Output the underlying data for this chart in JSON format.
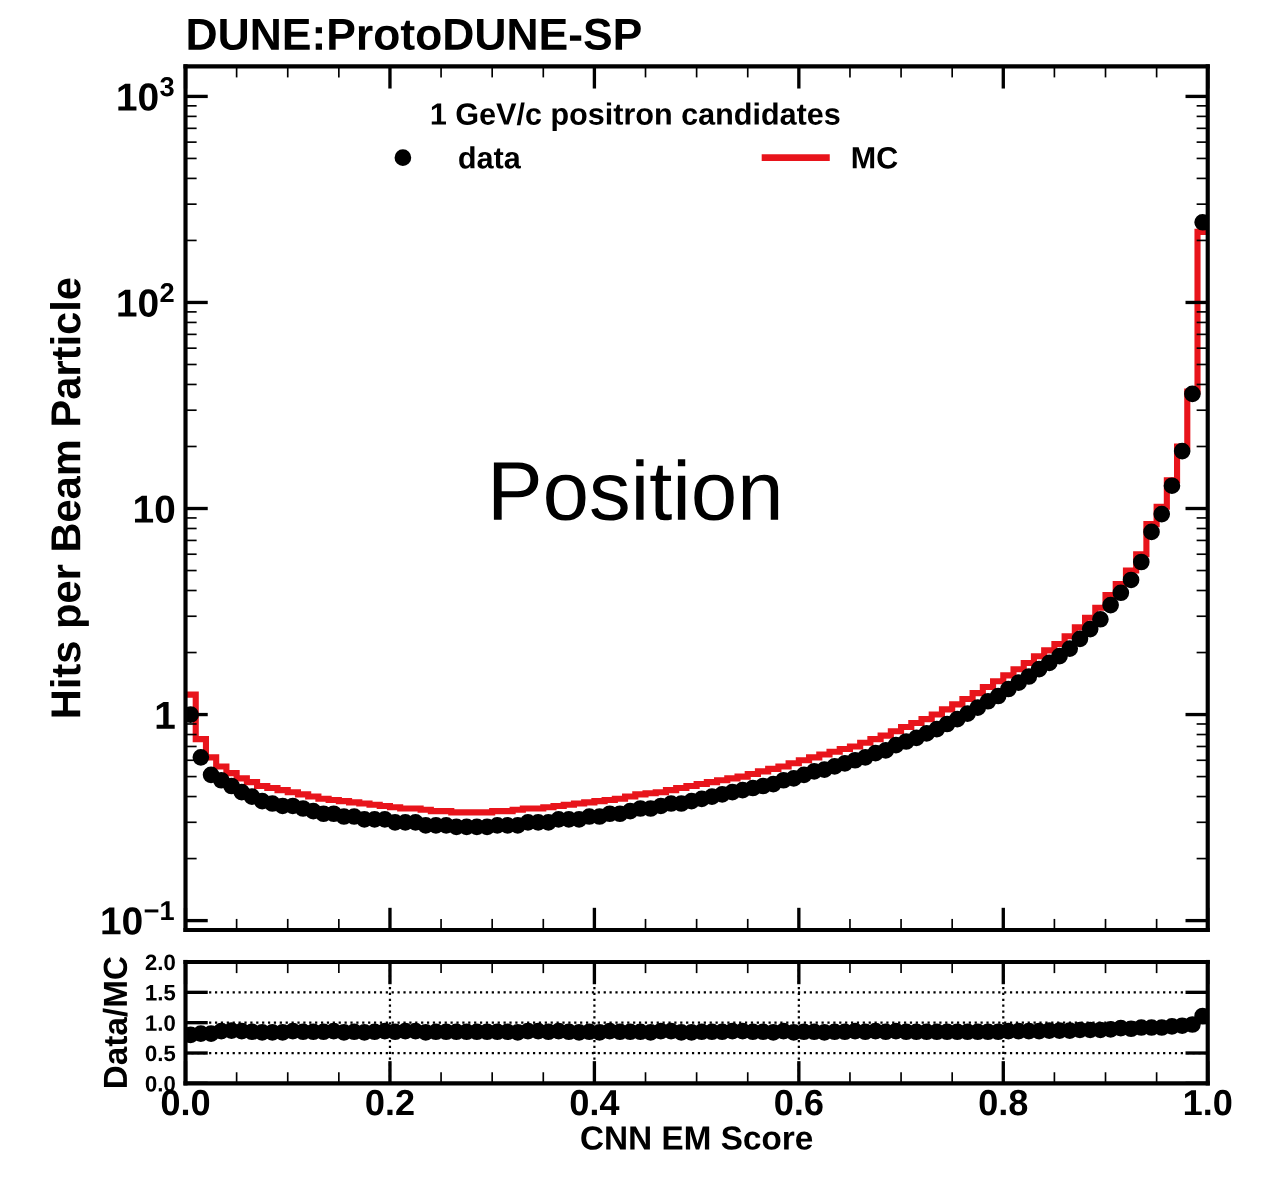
{
  "chart_data": [
    {
      "type": "histogram",
      "title": "DUNE:ProtoDUNE-SP",
      "ylabel": "Hits per Beam Particle",
      "legend_title": "1 GeV/c positron candidates",
      "legend": "top",
      "annotations": [
        "Position"
      ],
      "bins": [
        0,
        0.01,
        0.02,
        0.03,
        0.04,
        0.05,
        0.06,
        0.07,
        0.08,
        0.09,
        0.1,
        0.11,
        0.12,
        0.13,
        0.14,
        0.15,
        0.16,
        0.17,
        0.18,
        0.19,
        0.2,
        0.21,
        0.22,
        0.23,
        0.24,
        0.25,
        0.26,
        0.27,
        0.28,
        0.29,
        0.3,
        0.31,
        0.32,
        0.33,
        0.34,
        0.35,
        0.36,
        0.37,
        0.38,
        0.39,
        0.4,
        0.41,
        0.42,
        0.43,
        0.44,
        0.45,
        0.46,
        0.47,
        0.48,
        0.49,
        0.5,
        0.51,
        0.52,
        0.53,
        0.54,
        0.55,
        0.56,
        0.57,
        0.58,
        0.59,
        0.6,
        0.61,
        0.62,
        0.63,
        0.64,
        0.65,
        0.66,
        0.67,
        0.68,
        0.69,
        0.7,
        0.71,
        0.72,
        0.73,
        0.74,
        0.75,
        0.76,
        0.77,
        0.78,
        0.79,
        0.8,
        0.81,
        0.82,
        0.83,
        0.84,
        0.85,
        0.86,
        0.87,
        0.88,
        0.89,
        0.9,
        0.91,
        0.92,
        0.93,
        0.94,
        0.95,
        0.96,
        0.97,
        0.98,
        0.99,
        1.0
      ],
      "series": [
        {
          "name": "data",
          "type": "scatter",
          "color": "#000000",
          "marker": "circle",
          "x": [
            0.005,
            0.015,
            0.025,
            0.035,
            0.045,
            0.055,
            0.065,
            0.075,
            0.085,
            0.095,
            0.105,
            0.115,
            0.125,
            0.135,
            0.145,
            0.155,
            0.165,
            0.175,
            0.185,
            0.195,
            0.205,
            0.215,
            0.225,
            0.235,
            0.245,
            0.255,
            0.265,
            0.275,
            0.285,
            0.295,
            0.305,
            0.315,
            0.325,
            0.335,
            0.345,
            0.355,
            0.365,
            0.375,
            0.385,
            0.395,
            0.405,
            0.415,
            0.425,
            0.435,
            0.445,
            0.455,
            0.465,
            0.475,
            0.485,
            0.495,
            0.505,
            0.515,
            0.525,
            0.535,
            0.545,
            0.555,
            0.565,
            0.575,
            0.585,
            0.595,
            0.605,
            0.615,
            0.625,
            0.635,
            0.645,
            0.655,
            0.665,
            0.675,
            0.685,
            0.695,
            0.705,
            0.715,
            0.725,
            0.735,
            0.745,
            0.755,
            0.765,
            0.775,
            0.785,
            0.795,
            0.805,
            0.815,
            0.825,
            0.835,
            0.845,
            0.855,
            0.865,
            0.875,
            0.885,
            0.895,
            0.905,
            0.915,
            0.925,
            0.935,
            0.945,
            0.955,
            0.965,
            0.975,
            0.985,
            0.995
          ],
          "values": [
            1.0,
            0.62,
            0.51,
            0.48,
            0.45,
            0.42,
            0.4,
            0.38,
            0.37,
            0.36,
            0.36,
            0.35,
            0.34,
            0.33,
            0.33,
            0.32,
            0.32,
            0.31,
            0.31,
            0.31,
            0.3,
            0.3,
            0.3,
            0.29,
            0.29,
            0.29,
            0.285,
            0.285,
            0.285,
            0.285,
            0.29,
            0.29,
            0.29,
            0.3,
            0.3,
            0.3,
            0.31,
            0.31,
            0.31,
            0.32,
            0.32,
            0.33,
            0.33,
            0.34,
            0.35,
            0.35,
            0.36,
            0.37,
            0.37,
            0.38,
            0.39,
            0.4,
            0.41,
            0.42,
            0.43,
            0.44,
            0.45,
            0.46,
            0.48,
            0.49,
            0.51,
            0.53,
            0.54,
            0.56,
            0.58,
            0.6,
            0.62,
            0.65,
            0.67,
            0.71,
            0.74,
            0.77,
            0.81,
            0.85,
            0.9,
            0.95,
            1.01,
            1.08,
            1.16,
            1.23,
            1.33,
            1.43,
            1.53,
            1.66,
            1.78,
            1.92,
            2.09,
            2.33,
            2.6,
            2.9,
            3.4,
            3.9,
            4.5,
            5.5,
            7.7,
            9.4,
            12.9,
            19,
            36,
            245
          ]
        },
        {
          "name": "MC",
          "type": "histogram",
          "color": "#e8141b",
          "values": [
            1.25,
            0.76,
            0.62,
            0.56,
            0.52,
            0.49,
            0.47,
            0.45,
            0.44,
            0.43,
            0.42,
            0.41,
            0.4,
            0.39,
            0.385,
            0.38,
            0.375,
            0.37,
            0.365,
            0.36,
            0.355,
            0.35,
            0.35,
            0.345,
            0.34,
            0.34,
            0.335,
            0.335,
            0.335,
            0.335,
            0.34,
            0.34,
            0.345,
            0.35,
            0.35,
            0.355,
            0.36,
            0.365,
            0.37,
            0.375,
            0.38,
            0.385,
            0.39,
            0.4,
            0.41,
            0.415,
            0.42,
            0.43,
            0.44,
            0.45,
            0.46,
            0.47,
            0.48,
            0.49,
            0.5,
            0.515,
            0.53,
            0.545,
            0.56,
            0.58,
            0.6,
            0.62,
            0.64,
            0.66,
            0.68,
            0.7,
            0.73,
            0.76,
            0.79,
            0.83,
            0.87,
            0.91,
            0.95,
            1.0,
            1.06,
            1.12,
            1.19,
            1.27,
            1.36,
            1.45,
            1.55,
            1.66,
            1.78,
            1.92,
            2.05,
            2.2,
            2.4,
            2.65,
            2.95,
            3.3,
            3.8,
            4.3,
            5.0,
            6.0,
            8.4,
            10.2,
            13.7,
            20,
            37,
            220
          ]
        }
      ],
      "log": "y",
      "xlim": [
        0,
        1
      ],
      "ylim": [
        0.09,
        1400
      ],
      "xticks": [
        0,
        0.2,
        0.4,
        0.6,
        0.8,
        1.0
      ],
      "yticks": [
        {
          "value": 0.1,
          "label": "10$^{−1}$"
        },
        1,
        10,
        {
          "value": 100,
          "label": "10$^{2}$"
        },
        {
          "value": 1000,
          "label": "10$^{3}$"
        }
      ],
      "tick_labels": "y"
    },
    {
      "type": "scatter",
      "xlabel": "CNN EM Score",
      "ylabel": "Data/MC",
      "marker": "circle",
      "grid": true,
      "line_style": "dotted",
      "x": [
        0.005,
        0.015,
        0.025,
        0.035,
        0.045,
        0.055,
        0.065,
        0.075,
        0.085,
        0.095,
        0.105,
        0.115,
        0.125,
        0.135,
        0.145,
        0.155,
        0.165,
        0.175,
        0.185,
        0.195,
        0.205,
        0.215,
        0.225,
        0.235,
        0.245,
        0.255,
        0.265,
        0.275,
        0.285,
        0.295,
        0.305,
        0.315,
        0.325,
        0.335,
        0.345,
        0.355,
        0.365,
        0.375,
        0.385,
        0.395,
        0.405,
        0.415,
        0.425,
        0.435,
        0.445,
        0.455,
        0.465,
        0.475,
        0.485,
        0.495,
        0.505,
        0.515,
        0.525,
        0.535,
        0.545,
        0.555,
        0.565,
        0.575,
        0.585,
        0.595,
        0.605,
        0.615,
        0.625,
        0.635,
        0.645,
        0.655,
        0.665,
        0.675,
        0.685,
        0.695,
        0.705,
        0.715,
        0.725,
        0.735,
        0.745,
        0.755,
        0.765,
        0.775,
        0.785,
        0.795,
        0.805,
        0.815,
        0.825,
        0.835,
        0.845,
        0.855,
        0.865,
        0.875,
        0.885,
        0.895,
        0.905,
        0.915,
        0.925,
        0.935,
        0.945,
        0.955,
        0.965,
        0.975,
        0.985,
        0.995
      ],
      "series": [
        {
          "color": "#000000",
          "values": [
            0.8,
            0.82,
            0.82,
            0.86,
            0.87,
            0.86,
            0.85,
            0.84,
            0.84,
            0.84,
            0.86,
            0.85,
            0.85,
            0.85,
            0.86,
            0.84,
            0.85,
            0.84,
            0.85,
            0.86,
            0.85,
            0.86,
            0.86,
            0.84,
            0.85,
            0.85,
            0.85,
            0.85,
            0.85,
            0.85,
            0.85,
            0.85,
            0.84,
            0.86,
            0.86,
            0.85,
            0.86,
            0.85,
            0.84,
            0.85,
            0.84,
            0.86,
            0.85,
            0.85,
            0.85,
            0.84,
            0.86,
            0.86,
            0.84,
            0.84,
            0.85,
            0.85,
            0.85,
            0.86,
            0.86,
            0.85,
            0.85,
            0.84,
            0.86,
            0.84,
            0.85,
            0.85,
            0.84,
            0.85,
            0.85,
            0.86,
            0.85,
            0.86,
            0.85,
            0.86,
            0.85,
            0.85,
            0.85,
            0.85,
            0.85,
            0.85,
            0.85,
            0.85,
            0.85,
            0.85,
            0.86,
            0.86,
            0.86,
            0.86,
            0.87,
            0.87,
            0.87,
            0.88,
            0.88,
            0.88,
            0.89,
            0.91,
            0.9,
            0.92,
            0.92,
            0.92,
            0.94,
            0.95,
            0.97,
            1.11
          ]
        }
      ],
      "xlim": [
        0,
        1
      ],
      "ylim": [
        0,
        2
      ],
      "xticks": [
        {
          "value": 0,
          "label": "0.0"
        },
        0.2,
        0.4,
        0.6,
        0.8,
        {
          "value": 1,
          "label": "1.0"
        }
      ],
      "yticks": [
        {
          "value": 0,
          "label": "0.0"
        },
        {
          "value": 0.5,
          "label": "0.5"
        },
        {
          "value": 1,
          "label": "1.0"
        },
        {
          "value": 1.5,
          "label": "1.5"
        },
        {
          "value": 2,
          "label": "2.0"
        }
      ]
    }
  ]
}
